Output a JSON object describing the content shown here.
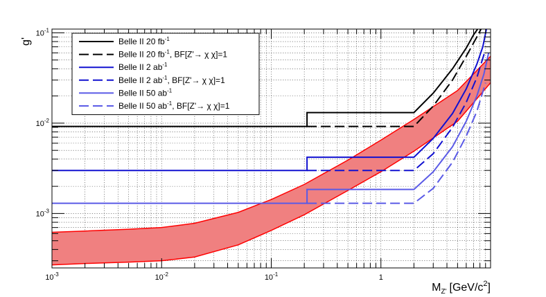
{
  "chart_data": {
    "type": "line",
    "xlabel": "M",
    "xlabel_sub": "Z'",
    "xlabel_unit": "[GeV/c",
    "xlabel_unit_sup": "2",
    "xlabel_unit_end": "]",
    "ylabel": "g'",
    "xscale": "log",
    "yscale": "log",
    "xlim": [
      0.001,
      10
    ],
    "ylim": [
      0.00025,
      0.11
    ],
    "grid": true,
    "legend_position": "top-left",
    "x_ticks": [
      {
        "value": 0.001,
        "base": "10",
        "exp": "-3"
      },
      {
        "value": 0.01,
        "base": "10",
        "exp": "-2"
      },
      {
        "value": 0.1,
        "base": "10",
        "exp": "-1"
      },
      {
        "value": 1,
        "base": "1",
        "exp": ""
      }
    ],
    "y_ticks": [
      {
        "value": 0.001,
        "base": "10",
        "exp": "-3"
      },
      {
        "value": 0.01,
        "base": "10",
        "exp": "-2"
      },
      {
        "value": 0.1,
        "base": "10",
        "exp": "-1"
      }
    ],
    "series": [
      {
        "name": "Belle II 20 fb",
        "name_sup": "-1",
        "name_tail": "",
        "color": "#000000",
        "style": "solid",
        "x": [
          0.001,
          0.212,
          0.212,
          2.0,
          3.0,
          4.5,
          6.0,
          7.0,
          8.0
        ],
        "y": [
          0.0092,
          0.0092,
          0.0131,
          0.0131,
          0.0215,
          0.04,
          0.068,
          0.095,
          0.12
        ]
      },
      {
        "name": "Belle II 20 fb",
        "name_sup": "-1",
        "name_tail": ", BF[Z'→ χ χ]=1",
        "color": "#000000",
        "style": "dashed",
        "x": [
          0.212,
          2.0,
          3.0,
          4.5,
          6.0,
          7.5,
          8.5
        ],
        "y": [
          0.0092,
          0.0092,
          0.0155,
          0.03,
          0.055,
          0.09,
          0.12
        ]
      },
      {
        "name": "Belle II 2 ab",
        "name_sup": "-1",
        "name_tail": "",
        "color": "#1010d0",
        "style": "solid",
        "x": [
          0.001,
          0.212,
          0.212,
          2.0,
          3.0,
          4.5,
          6.0,
          7.5,
          8.5,
          9.3
        ],
        "y": [
          0.003,
          0.003,
          0.0042,
          0.0042,
          0.0068,
          0.0128,
          0.024,
          0.045,
          0.07,
          0.12
        ]
      },
      {
        "name": "Belle II 2 ab",
        "name_sup": "-1",
        "name_tail": ", BF[Z'→ χ χ]=1",
        "color": "#1010d0",
        "style": "dashed",
        "x": [
          0.212,
          2.0,
          3.0,
          4.5,
          6.0,
          7.5,
          8.8
        ],
        "y": [
          0.003,
          0.003,
          0.0046,
          0.009,
          0.017,
          0.032,
          0.06
        ]
      },
      {
        "name": "Belle II 50 ab",
        "name_sup": "-1",
        "name_tail": "",
        "color": "#5a5ae6",
        "style": "solid",
        "x": [
          0.001,
          0.212,
          0.212,
          2.0,
          3.0,
          4.5,
          6.0,
          7.5,
          8.7,
          9.6
        ],
        "y": [
          0.0013,
          0.0013,
          0.00185,
          0.00185,
          0.0029,
          0.0055,
          0.0105,
          0.02,
          0.035,
          0.06
        ]
      },
      {
        "name": "Belle II 50 ab",
        "name_sup": "-1",
        "name_tail": ", BF[Z'→ χ χ]=1",
        "color": "#5a5ae6",
        "style": "dashed",
        "x": [
          0.212,
          2.0,
          3.0,
          4.5,
          6.0,
          7.5,
          9.0
        ],
        "y": [
          0.0013,
          0.0013,
          0.0019,
          0.0037,
          0.0072,
          0.0135,
          0.028
        ]
      }
    ],
    "band": {
      "color": "#f08080",
      "edge_color": "#ff0000",
      "x": [
        0.001,
        0.002,
        0.005,
        0.01,
        0.02,
        0.05,
        0.1,
        0.2,
        0.5,
        1,
        2,
        5,
        10
      ],
      "upper": [
        0.00062,
        0.00064,
        0.00067,
        0.0007,
        0.00078,
        0.00103,
        0.00143,
        0.0021,
        0.0039,
        0.0065,
        0.011,
        0.023,
        0.055
      ],
      "lower": [
        0.00027,
        0.00028,
        0.00029,
        0.0003,
        0.00033,
        0.00045,
        0.00065,
        0.00097,
        0.0018,
        0.0029,
        0.0049,
        0.0105,
        0.028
      ]
    }
  }
}
